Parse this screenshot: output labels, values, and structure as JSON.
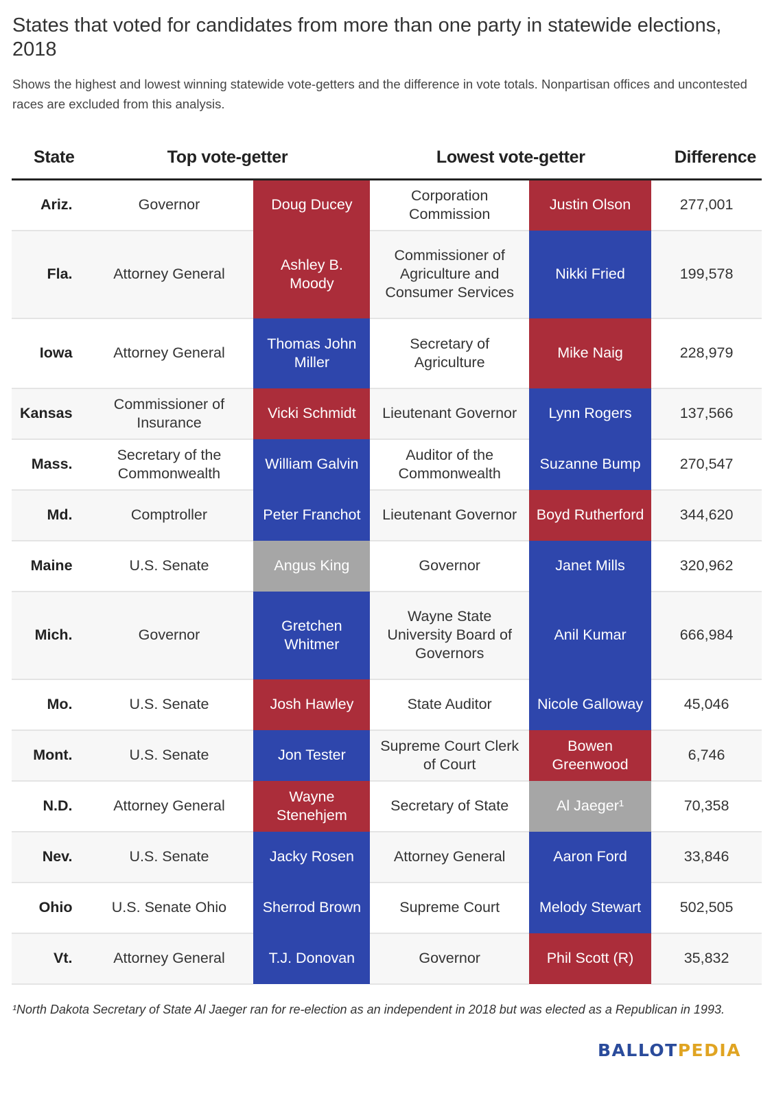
{
  "title": "States that voted for candidates from more than one party in statewide elections, 2018",
  "subtitle": "Shows the highest and lowest winning statewide vote-getters and the difference in vote totals. Nonpartisan offices and uncontested races are excluded from this analysis.",
  "colors": {
    "republican": "#ab2d3a",
    "democrat": "#2e46ac",
    "independent": "#a6a6a6"
  },
  "chart_data": {
    "type": "table",
    "columns": [
      "State",
      "Top vote-getter",
      "Lowest vote-getter",
      "Difference"
    ],
    "rows": [
      {
        "state": "Ariz.",
        "top_office": "Governor",
        "top_name": "Doug Ducey",
        "top_party": "rep",
        "low_office": "Corporation Commission",
        "low_name": "Justin Olson",
        "low_party": "rep",
        "difference": "277,001"
      },
      {
        "state": "Fla.",
        "top_office": "Attorney General",
        "top_name": "Ashley B. Moody",
        "top_party": "rep",
        "low_office": "Commissioner of Agriculture and Consumer Services",
        "low_name": "Nikki Fried",
        "low_party": "dem",
        "difference": "199,578"
      },
      {
        "state": "Iowa",
        "top_office": "Attorney General",
        "top_name": "Thomas John Miller",
        "top_party": "dem",
        "low_office": "Secretary of Agriculture",
        "low_name": "Mike Naig",
        "low_party": "rep",
        "difference": "228,979"
      },
      {
        "state": "Kansas",
        "top_office": "Commissioner of Insurance",
        "top_name": "Vicki Schmidt",
        "top_party": "rep",
        "low_office": "Lieutenant Governor",
        "low_name": "Lynn Rogers",
        "low_party": "dem",
        "difference": "137,566"
      },
      {
        "state": "Mass.",
        "top_office": "Secretary of the Commonwealth",
        "top_name": "William Galvin",
        "top_party": "dem",
        "low_office": "Auditor of the Commonwealth",
        "low_name": "Suzanne Bump",
        "low_party": "dem",
        "difference": "270,547"
      },
      {
        "state": "Md.",
        "top_office": "Comptroller",
        "top_name": "Peter Franchot",
        "top_party": "dem",
        "low_office": "Lieutenant Governor",
        "low_name": "Boyd Rutherford",
        "low_party": "rep",
        "difference": "344,620"
      },
      {
        "state": "Maine",
        "top_office": "U.S. Senate",
        "top_name": "Angus King",
        "top_party": "ind",
        "low_office": "Governor",
        "low_name": "Janet Mills",
        "low_party": "dem",
        "difference": "320,962"
      },
      {
        "state": "Mich.",
        "top_office": "Governor",
        "top_name": "Gretchen Whitmer",
        "top_party": "dem",
        "low_office": "Wayne State University Board of Governors",
        "low_name": "Anil Kumar",
        "low_party": "dem",
        "difference": "666,984"
      },
      {
        "state": "Mo.",
        "top_office": "U.S. Senate",
        "top_name": "Josh Hawley",
        "top_party": "rep",
        "low_office": "State Auditor",
        "low_name": "Nicole Galloway",
        "low_party": "dem",
        "difference": "45,046"
      },
      {
        "state": "Mont.",
        "top_office": "U.S. Senate",
        "top_name": "Jon Tester",
        "top_party": "dem",
        "low_office": "Supreme Court Clerk of Court",
        "low_name": "Bowen Greenwood",
        "low_party": "rep",
        "difference": "6,746"
      },
      {
        "state": "N.D.",
        "top_office": "Attorney General",
        "top_name": "Wayne Stenehjem",
        "top_party": "rep",
        "low_office": "Secretary of State",
        "low_name": "Al Jaeger¹",
        "low_party": "ind",
        "difference": "70,358"
      },
      {
        "state": "Nev.",
        "top_office": "U.S. Senate",
        "top_name": "Jacky Rosen",
        "top_party": "dem",
        "low_office": "Attorney General",
        "low_name": "Aaron Ford",
        "low_party": "dem",
        "difference": "33,846"
      },
      {
        "state": "Ohio",
        "top_office": "U.S. Senate Ohio",
        "top_name": "Sherrod Brown",
        "top_party": "dem",
        "low_office": "Supreme Court",
        "low_name": "Melody Stewart",
        "low_party": "dem",
        "difference": "502,505"
      },
      {
        "state": "Vt.",
        "top_office": "Attorney General",
        "top_name": "T.J. Donovan",
        "top_party": "dem",
        "low_office": "Governor",
        "low_name": "Phil Scott (R)",
        "low_party": "rep",
        "difference": "35,832"
      }
    ]
  },
  "footnote": "¹North Dakota Secretary of State Al Jaeger ran for re-election as an independent in 2018 but was elected as a Republican in 1993.",
  "logo": {
    "part1": "BALLOT",
    "part2": "PEDIA"
  }
}
